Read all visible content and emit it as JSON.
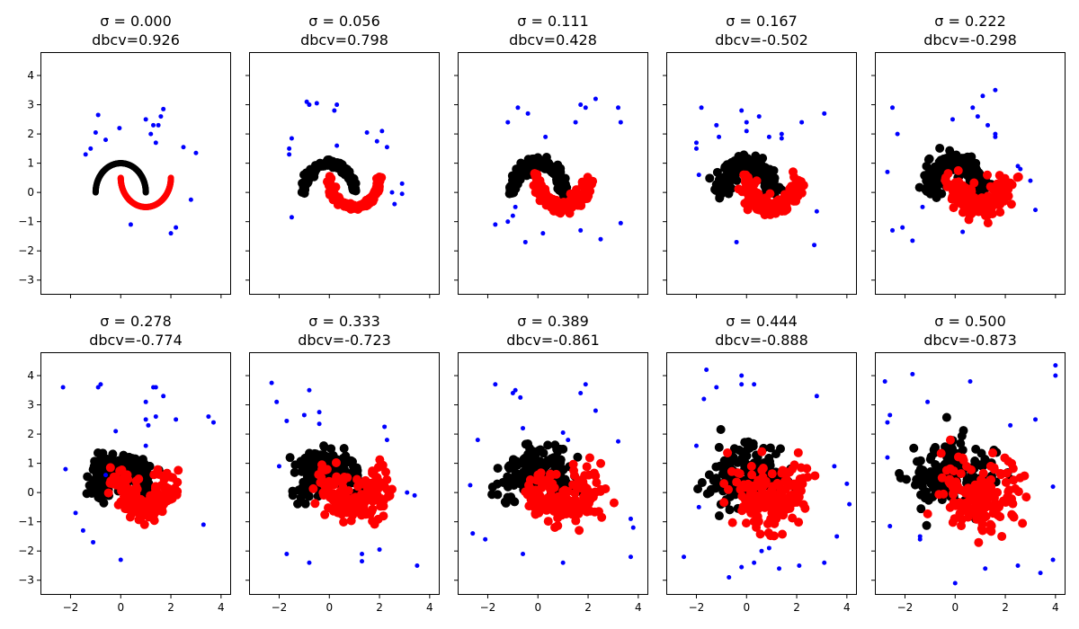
{
  "figure": {
    "background": "#ffffff"
  },
  "colors": {
    "cluster_a": "#000000",
    "cluster_b": "#ff0000",
    "noise": "#0000ff"
  },
  "shared_axes": {
    "xlim": [
      -3.2,
      4.4
    ],
    "ylim": [
      -3.5,
      4.8
    ],
    "xticks": [
      -2,
      0,
      2,
      4
    ],
    "xtick_labels": [
      "−2",
      "0",
      "2",
      "4"
    ],
    "yticks": [
      -3,
      -2,
      -1,
      0,
      1,
      2,
      3,
      4
    ],
    "ytick_labels": [
      "−3",
      "−2",
      "−1",
      "0",
      "1",
      "2",
      "3",
      "4"
    ]
  },
  "chart_data": [
    {
      "type": "scatter",
      "title": "σ = 0.000",
      "subtitle": "dbcv=0.926",
      "sigma": 0.0,
      "dbcv": 0.926,
      "series": [
        {
          "name": "cluster A",
          "color": "#000000"
        },
        {
          "name": "cluster B",
          "color": "#ff0000"
        },
        {
          "name": "noise",
          "color": "#0000ff",
          "points": [
            [
              -1.4,
              1.3
            ],
            [
              -1.2,
              1.5
            ],
            [
              -1.0,
              2.05
            ],
            [
              -0.9,
              2.65
            ],
            [
              -0.6,
              1.8
            ],
            [
              -0.05,
              2.2
            ],
            [
              1.0,
              2.5
            ],
            [
              1.3,
              2.3
            ],
            [
              1.2,
              2.0
            ],
            [
              1.5,
              2.3
            ],
            [
              1.6,
              2.6
            ],
            [
              1.7,
              2.85
            ],
            [
              1.4,
              1.7
            ],
            [
              0.4,
              -1.1
            ],
            [
              2.0,
              -1.4
            ],
            [
              2.2,
              -1.2
            ],
            [
              2.5,
              1.55
            ],
            [
              2.8,
              -0.25
            ],
            [
              3.0,
              1.35
            ]
          ]
        }
      ]
    },
    {
      "type": "scatter",
      "title": "σ = 0.056",
      "subtitle": "dbcv=0.798",
      "sigma": 0.056,
      "dbcv": 0.798,
      "series": [
        {
          "name": "cluster A",
          "color": "#000000"
        },
        {
          "name": "cluster B",
          "color": "#ff0000"
        },
        {
          "name": "noise",
          "color": "#0000ff",
          "points": [
            [
              -1.6,
              1.3
            ],
            [
              -1.6,
              1.5
            ],
            [
              -1.5,
              1.85
            ],
            [
              -0.9,
              3.1
            ],
            [
              -0.8,
              3.0
            ],
            [
              -0.5,
              3.05
            ],
            [
              0.2,
              2.8
            ],
            [
              0.3,
              3.0
            ],
            [
              0.3,
              1.6
            ],
            [
              1.5,
              2.05
            ],
            [
              1.9,
              1.75
            ],
            [
              2.1,
              2.1
            ],
            [
              2.3,
              1.55
            ],
            [
              2.5,
              0.0
            ],
            [
              2.6,
              -0.4
            ],
            [
              2.9,
              0.3
            ],
            [
              2.9,
              -0.05
            ],
            [
              -1.5,
              -0.85
            ]
          ]
        }
      ]
    },
    {
      "type": "scatter",
      "title": "σ = 0.111",
      "subtitle": "dbcv=0.428",
      "sigma": 0.111,
      "dbcv": 0.428,
      "series": [
        {
          "name": "cluster A",
          "color": "#000000"
        },
        {
          "name": "cluster B",
          "color": "#ff0000"
        },
        {
          "name": "noise",
          "color": "#0000ff",
          "points": [
            [
              -1.7,
              -1.1
            ],
            [
              -1.2,
              -1.0
            ],
            [
              -1.0,
              -0.8
            ],
            [
              -0.9,
              -0.5
            ],
            [
              -1.2,
              2.4
            ],
            [
              -0.8,
              2.9
            ],
            [
              -0.4,
              2.7
            ],
            [
              -0.5,
              -1.7
            ],
            [
              0.3,
              1.9
            ],
            [
              0.2,
              -1.4
            ],
            [
              1.5,
              2.4
            ],
            [
              1.7,
              3.0
            ],
            [
              1.9,
              2.9
            ],
            [
              2.3,
              3.2
            ],
            [
              3.2,
              2.9
            ],
            [
              3.3,
              2.4
            ],
            [
              3.3,
              -1.05
            ],
            [
              1.7,
              -1.3
            ],
            [
              2.5,
              -1.6
            ]
          ]
        }
      ]
    },
    {
      "type": "scatter",
      "title": "σ = 0.167",
      "subtitle": "dbcv=-0.502",
      "sigma": 0.167,
      "dbcv": -0.502,
      "series": [
        {
          "name": "cluster A",
          "color": "#000000"
        },
        {
          "name": "cluster B",
          "color": "#ff0000"
        },
        {
          "name": "noise",
          "color": "#0000ff",
          "points": [
            [
              -2.0,
              1.5
            ],
            [
              -2.0,
              1.7
            ],
            [
              -1.9,
              0.6
            ],
            [
              -1.8,
              2.9
            ],
            [
              -1.2,
              2.3
            ],
            [
              -1.1,
              1.9
            ],
            [
              -0.2,
              2.8
            ],
            [
              0.0,
              2.4
            ],
            [
              0.0,
              2.1
            ],
            [
              0.5,
              2.6
            ],
            [
              0.9,
              1.9
            ],
            [
              1.4,
              1.85
            ],
            [
              1.4,
              2.0
            ],
            [
              2.2,
              2.4
            ],
            [
              3.1,
              2.7
            ],
            [
              2.8,
              -0.65
            ],
            [
              2.7,
              -1.8
            ],
            [
              -0.4,
              -1.7
            ]
          ]
        }
      ]
    },
    {
      "type": "scatter",
      "title": "σ = 0.222",
      "subtitle": "dbcv=-0.298",
      "sigma": 0.222,
      "dbcv": -0.298,
      "series": [
        {
          "name": "cluster A",
          "color": "#000000"
        },
        {
          "name": "cluster B",
          "color": "#ff0000"
        },
        {
          "name": "noise",
          "color": "#0000ff",
          "points": [
            [
              -2.7,
              0.7
            ],
            [
              -2.5,
              2.9
            ],
            [
              -2.3,
              2.0
            ],
            [
              -2.5,
              -1.3
            ],
            [
              -2.1,
              -1.2
            ],
            [
              -1.7,
              -1.65
            ],
            [
              -1.3,
              -0.5
            ],
            [
              -0.1,
              2.5
            ],
            [
              0.7,
              2.9
            ],
            [
              0.9,
              2.6
            ],
            [
              1.1,
              3.3
            ],
            [
              1.3,
              2.3
            ],
            [
              1.6,
              1.9
            ],
            [
              1.6,
              2.0
            ],
            [
              1.6,
              3.5
            ],
            [
              2.5,
              0.9
            ],
            [
              2.6,
              0.8
            ],
            [
              3.0,
              0.4
            ],
            [
              3.2,
              -0.6
            ],
            [
              0.3,
              -1.35
            ]
          ]
        }
      ]
    },
    {
      "type": "scatter",
      "title": "σ = 0.278",
      "subtitle": "dbcv=-0.774",
      "sigma": 0.278,
      "dbcv": -0.774,
      "series": [
        {
          "name": "cluster A",
          "color": "#000000"
        },
        {
          "name": "cluster B",
          "color": "#ff0000"
        },
        {
          "name": "noise",
          "color": "#0000ff",
          "points": [
            [
              -2.3,
              3.6
            ],
            [
              -2.2,
              0.8
            ],
            [
              -1.8,
              -0.7
            ],
            [
              -1.5,
              -1.3
            ],
            [
              -1.1,
              -1.7
            ],
            [
              -0.9,
              3.6
            ],
            [
              -0.8,
              3.7
            ],
            [
              -0.6,
              0.6
            ],
            [
              -0.2,
              2.1
            ],
            [
              0.0,
              -2.3
            ],
            [
              1.0,
              3.1
            ],
            [
              1.3,
              3.6
            ],
            [
              1.4,
              3.6
            ],
            [
              1.4,
              2.6
            ],
            [
              1.1,
              2.3
            ],
            [
              1.0,
              1.6
            ],
            [
              1.0,
              2.5
            ],
            [
              1.7,
              3.3
            ],
            [
              2.2,
              2.5
            ],
            [
              3.3,
              -1.1
            ],
            [
              3.5,
              2.6
            ],
            [
              3.7,
              2.4
            ]
          ]
        }
      ]
    },
    {
      "type": "scatter",
      "title": "σ = 0.333",
      "subtitle": "dbcv=-0.723",
      "sigma": 0.333,
      "dbcv": -0.723,
      "series": [
        {
          "name": "cluster A",
          "color": "#000000"
        },
        {
          "name": "cluster B",
          "color": "#ff0000"
        },
        {
          "name": "noise",
          "color": "#0000ff",
          "points": [
            [
              -2.3,
              3.75
            ],
            [
              -2.1,
              3.1
            ],
            [
              -2.0,
              0.9
            ],
            [
              -1.7,
              2.45
            ],
            [
              -1.7,
              -2.1
            ],
            [
              -1.0,
              2.65
            ],
            [
              -0.8,
              3.5
            ],
            [
              -0.8,
              -2.4
            ],
            [
              -0.4,
              2.75
            ],
            [
              -0.4,
              2.35
            ],
            [
              1.3,
              -2.1
            ],
            [
              1.3,
              -2.35
            ],
            [
              2.0,
              -1.95
            ],
            [
              2.2,
              2.25
            ],
            [
              2.3,
              1.8
            ],
            [
              3.1,
              0.0
            ],
            [
              3.4,
              -0.1
            ],
            [
              3.5,
              -2.5
            ]
          ]
        }
      ]
    },
    {
      "type": "scatter",
      "title": "σ = 0.389",
      "subtitle": "dbcv=-0.861",
      "sigma": 0.389,
      "dbcv": -0.861,
      "series": [
        {
          "name": "cluster A",
          "color": "#000000"
        },
        {
          "name": "cluster B",
          "color": "#ff0000"
        },
        {
          "name": "noise",
          "color": "#0000ff",
          "points": [
            [
              -2.7,
              0.25
            ],
            [
              -2.6,
              -1.4
            ],
            [
              -2.4,
              1.8
            ],
            [
              -2.1,
              -1.6
            ],
            [
              -1.7,
              3.7
            ],
            [
              -1.0,
              3.4
            ],
            [
              -0.9,
              3.5
            ],
            [
              -0.7,
              3.25
            ],
            [
              -0.6,
              2.2
            ],
            [
              -0.6,
              -2.1
            ],
            [
              1.0,
              -2.4
            ],
            [
              1.0,
              2.05
            ],
            [
              1.2,
              1.8
            ],
            [
              1.9,
              3.7
            ],
            [
              1.7,
              3.4
            ],
            [
              2.3,
              2.8
            ],
            [
              3.2,
              1.75
            ],
            [
              3.8,
              -1.2
            ],
            [
              3.7,
              -0.9
            ],
            [
              3.7,
              -2.2
            ]
          ]
        }
      ]
    },
    {
      "type": "scatter",
      "title": "σ = 0.444",
      "subtitle": "dbcv=-0.888",
      "sigma": 0.444,
      "dbcv": -0.888,
      "series": [
        {
          "name": "cluster A",
          "color": "#000000"
        },
        {
          "name": "cluster B",
          "color": "#ff0000"
        },
        {
          "name": "noise",
          "color": "#0000ff",
          "points": [
            [
              -2.5,
              -2.2
            ],
            [
              -2.0,
              1.6
            ],
            [
              -1.9,
              -0.5
            ],
            [
              -1.7,
              3.2
            ],
            [
              -1.6,
              4.2
            ],
            [
              -1.2,
              3.6
            ],
            [
              -0.2,
              4.0
            ],
            [
              -0.2,
              3.7
            ],
            [
              0.3,
              3.7
            ],
            [
              0.3,
              -2.4
            ],
            [
              -0.2,
              -2.55
            ],
            [
              0.6,
              -2.0
            ],
            [
              1.3,
              -2.6
            ],
            [
              2.1,
              -2.5
            ],
            [
              2.8,
              3.3
            ],
            [
              3.1,
              -2.4
            ],
            [
              3.5,
              0.9
            ],
            [
              3.6,
              -1.5
            ],
            [
              4.0,
              0.3
            ],
            [
              4.1,
              -0.4
            ],
            [
              0.9,
              -1.9
            ],
            [
              -0.7,
              -2.9
            ]
          ]
        }
      ]
    },
    {
      "type": "scatter",
      "title": "σ = 0.500",
      "subtitle": "dbcv=-0.873",
      "sigma": 0.5,
      "dbcv": -0.873,
      "series": [
        {
          "name": "cluster A",
          "color": "#000000"
        },
        {
          "name": "cluster B",
          "color": "#ff0000"
        },
        {
          "name": "noise",
          "color": "#0000ff",
          "points": [
            [
              -2.8,
              3.8
            ],
            [
              -2.7,
              2.4
            ],
            [
              -2.6,
              2.65
            ],
            [
              -2.7,
              1.2
            ],
            [
              -2.6,
              -1.15
            ],
            [
              -1.7,
              4.05
            ],
            [
              -1.4,
              -1.5
            ],
            [
              -1.4,
              -1.6
            ],
            [
              -1.1,
              3.1
            ],
            [
              0.0,
              -3.1
            ],
            [
              0.6,
              3.8
            ],
            [
              1.2,
              -2.6
            ],
            [
              2.2,
              2.3
            ],
            [
              2.5,
              -2.5
            ],
            [
              3.2,
              2.5
            ],
            [
              3.4,
              -2.75
            ],
            [
              3.9,
              -2.3
            ],
            [
              4.0,
              4.35
            ],
            [
              4.0,
              4.0
            ],
            [
              3.9,
              0.2
            ]
          ]
        }
      ]
    }
  ]
}
